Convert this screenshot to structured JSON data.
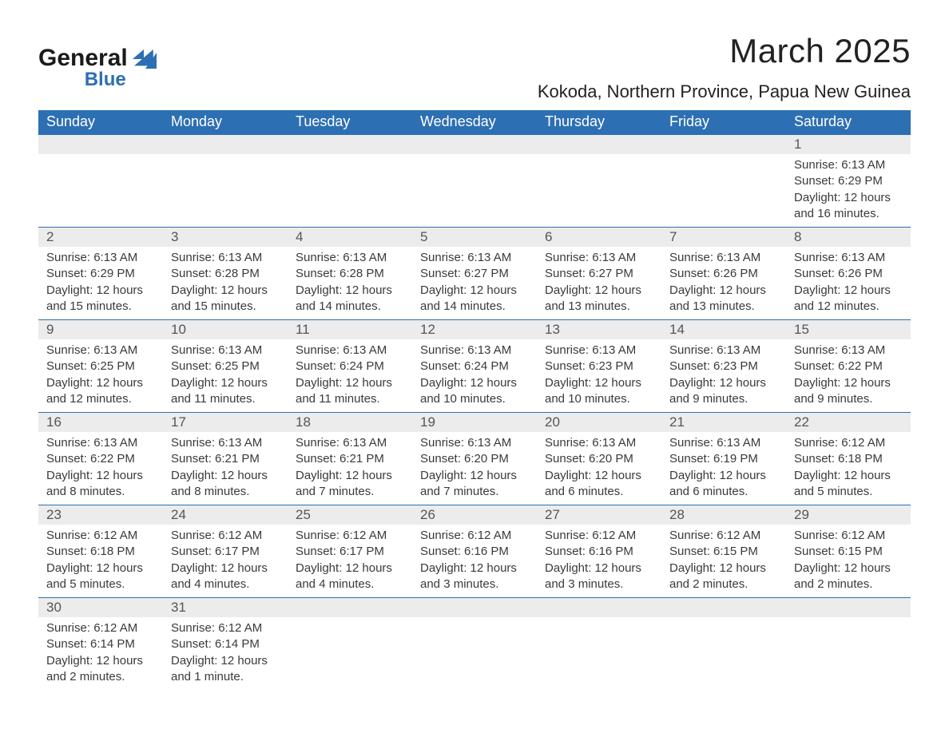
{
  "logo": {
    "word1": "General",
    "word2": "Blue",
    "color_dark": "#1a1a1a",
    "color_blue": "#2d6fb3"
  },
  "header": {
    "month_title": "March 2025",
    "location": "Kokoda, Northern Province, Papua New Guinea"
  },
  "colors": {
    "header_bg": "#2d6fb3",
    "header_text": "#ffffff",
    "daynum_bg": "#ececec",
    "border": "#2d6fb3",
    "body_text": "#3a3a3a"
  },
  "weekdays": [
    "Sunday",
    "Monday",
    "Tuesday",
    "Wednesday",
    "Thursday",
    "Friday",
    "Saturday"
  ],
  "weeks": [
    {
      "days": [
        {
          "num": "",
          "lines": []
        },
        {
          "num": "",
          "lines": []
        },
        {
          "num": "",
          "lines": []
        },
        {
          "num": "",
          "lines": []
        },
        {
          "num": "",
          "lines": []
        },
        {
          "num": "",
          "lines": []
        },
        {
          "num": "1",
          "lines": [
            "Sunrise: 6:13 AM",
            "Sunset: 6:29 PM",
            "Daylight: 12 hours and 16 minutes."
          ]
        }
      ]
    },
    {
      "days": [
        {
          "num": "2",
          "lines": [
            "Sunrise: 6:13 AM",
            "Sunset: 6:29 PM",
            "Daylight: 12 hours and 15 minutes."
          ]
        },
        {
          "num": "3",
          "lines": [
            "Sunrise: 6:13 AM",
            "Sunset: 6:28 PM",
            "Daylight: 12 hours and 15 minutes."
          ]
        },
        {
          "num": "4",
          "lines": [
            "Sunrise: 6:13 AM",
            "Sunset: 6:28 PM",
            "Daylight: 12 hours and 14 minutes."
          ]
        },
        {
          "num": "5",
          "lines": [
            "Sunrise: 6:13 AM",
            "Sunset: 6:27 PM",
            "Daylight: 12 hours and 14 minutes."
          ]
        },
        {
          "num": "6",
          "lines": [
            "Sunrise: 6:13 AM",
            "Sunset: 6:27 PM",
            "Daylight: 12 hours and 13 minutes."
          ]
        },
        {
          "num": "7",
          "lines": [
            "Sunrise: 6:13 AM",
            "Sunset: 6:26 PM",
            "Daylight: 12 hours and 13 minutes."
          ]
        },
        {
          "num": "8",
          "lines": [
            "Sunrise: 6:13 AM",
            "Sunset: 6:26 PM",
            "Daylight: 12 hours and 12 minutes."
          ]
        }
      ]
    },
    {
      "days": [
        {
          "num": "9",
          "lines": [
            "Sunrise: 6:13 AM",
            "Sunset: 6:25 PM",
            "Daylight: 12 hours and 12 minutes."
          ]
        },
        {
          "num": "10",
          "lines": [
            "Sunrise: 6:13 AM",
            "Sunset: 6:25 PM",
            "Daylight: 12 hours and 11 minutes."
          ]
        },
        {
          "num": "11",
          "lines": [
            "Sunrise: 6:13 AM",
            "Sunset: 6:24 PM",
            "Daylight: 12 hours and 11 minutes."
          ]
        },
        {
          "num": "12",
          "lines": [
            "Sunrise: 6:13 AM",
            "Sunset: 6:24 PM",
            "Daylight: 12 hours and 10 minutes."
          ]
        },
        {
          "num": "13",
          "lines": [
            "Sunrise: 6:13 AM",
            "Sunset: 6:23 PM",
            "Daylight: 12 hours and 10 minutes."
          ]
        },
        {
          "num": "14",
          "lines": [
            "Sunrise: 6:13 AM",
            "Sunset: 6:23 PM",
            "Daylight: 12 hours and 9 minutes."
          ]
        },
        {
          "num": "15",
          "lines": [
            "Sunrise: 6:13 AM",
            "Sunset: 6:22 PM",
            "Daylight: 12 hours and 9 minutes."
          ]
        }
      ]
    },
    {
      "days": [
        {
          "num": "16",
          "lines": [
            "Sunrise: 6:13 AM",
            "Sunset: 6:22 PM",
            "Daylight: 12 hours and 8 minutes."
          ]
        },
        {
          "num": "17",
          "lines": [
            "Sunrise: 6:13 AM",
            "Sunset: 6:21 PM",
            "Daylight: 12 hours and 8 minutes."
          ]
        },
        {
          "num": "18",
          "lines": [
            "Sunrise: 6:13 AM",
            "Sunset: 6:21 PM",
            "Daylight: 12 hours and 7 minutes."
          ]
        },
        {
          "num": "19",
          "lines": [
            "Sunrise: 6:13 AM",
            "Sunset: 6:20 PM",
            "Daylight: 12 hours and 7 minutes."
          ]
        },
        {
          "num": "20",
          "lines": [
            "Sunrise: 6:13 AM",
            "Sunset: 6:20 PM",
            "Daylight: 12 hours and 6 minutes."
          ]
        },
        {
          "num": "21",
          "lines": [
            "Sunrise: 6:13 AM",
            "Sunset: 6:19 PM",
            "Daylight: 12 hours and 6 minutes."
          ]
        },
        {
          "num": "22",
          "lines": [
            "Sunrise: 6:12 AM",
            "Sunset: 6:18 PM",
            "Daylight: 12 hours and 5 minutes."
          ]
        }
      ]
    },
    {
      "days": [
        {
          "num": "23",
          "lines": [
            "Sunrise: 6:12 AM",
            "Sunset: 6:18 PM",
            "Daylight: 12 hours and 5 minutes."
          ]
        },
        {
          "num": "24",
          "lines": [
            "Sunrise: 6:12 AM",
            "Sunset: 6:17 PM",
            "Daylight: 12 hours and 4 minutes."
          ]
        },
        {
          "num": "25",
          "lines": [
            "Sunrise: 6:12 AM",
            "Sunset: 6:17 PM",
            "Daylight: 12 hours and 4 minutes."
          ]
        },
        {
          "num": "26",
          "lines": [
            "Sunrise: 6:12 AM",
            "Sunset: 6:16 PM",
            "Daylight: 12 hours and 3 minutes."
          ]
        },
        {
          "num": "27",
          "lines": [
            "Sunrise: 6:12 AM",
            "Sunset: 6:16 PM",
            "Daylight: 12 hours and 3 minutes."
          ]
        },
        {
          "num": "28",
          "lines": [
            "Sunrise: 6:12 AM",
            "Sunset: 6:15 PM",
            "Daylight: 12 hours and 2 minutes."
          ]
        },
        {
          "num": "29",
          "lines": [
            "Sunrise: 6:12 AM",
            "Sunset: 6:15 PM",
            "Daylight: 12 hours and 2 minutes."
          ]
        }
      ]
    },
    {
      "days": [
        {
          "num": "30",
          "lines": [
            "Sunrise: 6:12 AM",
            "Sunset: 6:14 PM",
            "Daylight: 12 hours and 2 minutes."
          ]
        },
        {
          "num": "31",
          "lines": [
            "Sunrise: 6:12 AM",
            "Sunset: 6:14 PM",
            "Daylight: 12 hours and 1 minute."
          ]
        },
        {
          "num": "",
          "lines": []
        },
        {
          "num": "",
          "lines": []
        },
        {
          "num": "",
          "lines": []
        },
        {
          "num": "",
          "lines": []
        },
        {
          "num": "",
          "lines": []
        }
      ]
    }
  ]
}
